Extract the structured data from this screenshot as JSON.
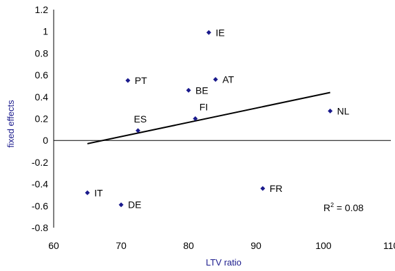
{
  "chart_data": {
    "type": "scatter",
    "title": "",
    "xlabel": "LTV ratio",
    "ylabel": "fixed effects",
    "xlim": [
      60,
      110
    ],
    "ylim": [
      -0.8,
      1.2
    ],
    "x_ticks": [
      60,
      70,
      80,
      90,
      100,
      110
    ],
    "y_ticks": [
      -0.8,
      -0.6,
      -0.4,
      -0.2,
      0,
      0.2,
      0.4,
      0.6,
      0.8,
      1,
      1.2
    ],
    "marker_color": "#1a1a8c",
    "points": [
      {
        "label": "IE",
        "x": 83,
        "y": 0.99
      },
      {
        "label": "PT",
        "x": 71,
        "y": 0.55
      },
      {
        "label": "AT",
        "x": 84,
        "y": 0.56
      },
      {
        "label": "BE",
        "x": 80,
        "y": 0.46
      },
      {
        "label": "FI",
        "x": 81,
        "y": 0.2
      },
      {
        "label": "NL",
        "x": 101,
        "y": 0.27
      },
      {
        "label": "ES",
        "x": 72.5,
        "y": 0.09
      },
      {
        "label": "FR",
        "x": 91,
        "y": -0.44
      },
      {
        "label": "IT",
        "x": 65,
        "y": -0.48
      },
      {
        "label": "DE",
        "x": 70,
        "y": -0.59
      }
    ],
    "trendline": {
      "x": [
        65,
        101
      ],
      "y": [
        -0.03,
        0.44
      ]
    },
    "annotation": {
      "base": "R",
      "sup": "2",
      "text": " = 0.08"
    }
  }
}
